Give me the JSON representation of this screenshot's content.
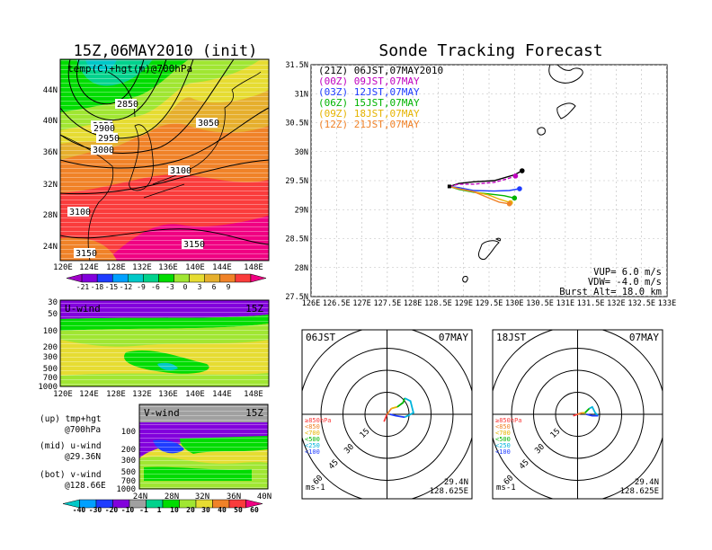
{
  "colors": {
    "temp_scale": [
      "#a000c8",
      "#8200dc",
      "#1e3cff",
      "#00a0ff",
      "#00c8c8",
      "#00d28c",
      "#00dc00",
      "#a0e632",
      "#e6dc32",
      "#e6af2d",
      "#f08228",
      "#fa3c3c",
      "#f00082"
    ],
    "wind_scale": [
      "#00c8c8",
      "#00a0ff",
      "#1e3cff",
      "#8200dc",
      "#a0a0a0",
      "#00d28c",
      "#00dc00",
      "#a0e632",
      "#e6dc32",
      "#f08228",
      "#fa3c3c",
      "#f00082"
    ]
  },
  "left": {
    "main_title": "15Z,06MAY2010 (init)",
    "map_label": "temp(C)+hgt(m)@700hPa",
    "map_lat_ticks": [
      "44N",
      "40N",
      "36N",
      "32N",
      "28N",
      "24N"
    ],
    "map_lon_ticks": [
      "120E",
      "124E",
      "128E",
      "132E",
      "136E",
      "140E",
      "144E",
      "148E"
    ],
    "contours": [
      "2850",
      "2900",
      "2950",
      "3000",
      "3050",
      "3100",
      "3100",
      "3150",
      "3150"
    ],
    "temp_colorbar": [
      "-21",
      "-18",
      "-15",
      "-12",
      "-9",
      "-6",
      "-3",
      "0",
      "3",
      "6",
      "9"
    ],
    "u_title": "U-wind",
    "u_time": "15Z",
    "u_p_ticks": [
      "30",
      "50",
      "100",
      "200",
      "300",
      "500",
      "700",
      "1000"
    ],
    "u_lon_ticks": [
      "120E",
      "124E",
      "128E",
      "132E",
      "136E",
      "140E",
      "144E",
      "148E"
    ],
    "v_title": "V-wind",
    "v_time": "15Z",
    "v_p_ticks": [
      "100",
      "200",
      "300",
      "500",
      "700",
      "1000"
    ],
    "v_lat_ticks": [
      "24N",
      "28N",
      "32N",
      "36N",
      "40N"
    ],
    "wind_colorbar": [
      "-40",
      "-30",
      "-20",
      "-10",
      "-1",
      "1",
      "10",
      "20",
      "30",
      "40",
      "50",
      "60"
    ],
    "legend": [
      {
        "head": "(up) tmp+hgt",
        "sub": "@700hPa"
      },
      {
        "head": "(mid) u-wind",
        "sub": "@29.36N"
      },
      {
        "head": "(bot) v-wind",
        "sub": "@128.66E"
      }
    ]
  },
  "right": {
    "title": "Sonde Tracking Forecast",
    "forecasts": [
      {
        "label": "(21Z) 06JST,07MAY2010",
        "color": "#000000"
      },
      {
        "label": "(00Z) 09JST,07MAY",
        "color": "#c000c0"
      },
      {
        "label": "(03Z) 12JST,07MAY",
        "color": "#1e3cff"
      },
      {
        "label": "(06Z) 15JST,07MAY",
        "color": "#00b400"
      },
      {
        "label": "(09Z) 18JST,07MAY",
        "color": "#e6b400"
      },
      {
        "label": "(12Z) 21JST,07MAY",
        "color": "#f08228"
      }
    ],
    "track_lat_ticks": [
      "31.5N",
      "31N",
      "30.5N",
      "30N",
      "29.5N",
      "29N",
      "28.5N",
      "28N",
      "27.5N"
    ],
    "track_lon_ticks": [
      "126E",
      "126.5E",
      "127E",
      "127.5E",
      "128E",
      "128.5E",
      "129E",
      "129.5E",
      "130E",
      "130.5E",
      "131E",
      "131.5E",
      "132E",
      "132.5E",
      "133E"
    ],
    "vup": "VUP=  6.0  m/s",
    "vdw": "VDW= -4.0  m/s",
    "burst": "Burst Alt=  18.0  km",
    "polars": [
      {
        "time": "06JST",
        "date": "07MAY",
        "lat": "29.4N",
        "lon": "128.625E",
        "unit": "ms-1",
        "rings": [
          "15",
          "30",
          "45",
          "60"
        ]
      },
      {
        "time": "18JST",
        "date": "07MAY",
        "lat": "29.4N",
        "lon": "128.625E",
        "unit": "ms-1",
        "rings": [
          "15",
          "30",
          "45",
          "60"
        ]
      }
    ],
    "pressure_levels": [
      {
        "label": "≥850hPa",
        "color": "#fa3c3c"
      },
      {
        "label": "<850",
        "color": "#f08228"
      },
      {
        "label": "<700",
        "color": "#e6b400"
      },
      {
        "label": "<500",
        "color": "#00b400"
      },
      {
        "label": "<250",
        "color": "#00b4dc"
      },
      {
        "label": "<100",
        "color": "#1e3cff"
      }
    ]
  },
  "chart_data": [
    {
      "type": "heatmap",
      "title": "15Z,06MAY2010 (init)",
      "label": "temp(C)+hgt(m)@700hPa",
      "xlim": [
        120,
        150
      ],
      "ylim": [
        22,
        47
      ],
      "colorbar_levels": [
        -21,
        -18,
        -15,
        -12,
        -9,
        -6,
        -3,
        0,
        3,
        6,
        9
      ],
      "contour_values": [
        2850,
        2900,
        2950,
        3000,
        3050,
        3100,
        3150
      ]
    },
    {
      "type": "heatmap",
      "title": "U-wind",
      "label": "15Z",
      "x_ticks": [
        "120E",
        "124E",
        "128E",
        "132E",
        "136E",
        "140E",
        "144E",
        "148E"
      ],
      "y_ticks_hPa": [
        30,
        50,
        100,
        200,
        300,
        500,
        700,
        1000
      ],
      "colorbar_levels": [
        -40,
        -30,
        -20,
        -10,
        -1,
        1,
        10,
        20,
        30,
        40,
        50,
        60
      ]
    },
    {
      "type": "heatmap",
      "title": "V-wind",
      "label": "15Z",
      "x_ticks": [
        "24N",
        "28N",
        "32N",
        "36N",
        "40N"
      ],
      "y_ticks_hPa": [
        100,
        200,
        300,
        500,
        700,
        1000
      ]
    },
    {
      "type": "line",
      "title": "Sonde Tracking Forecast",
      "xlim": [
        126,
        133
      ],
      "ylim": [
        27.5,
        31.5
      ],
      "series": [
        {
          "name": "(21Z) 06JST,07MAY2010",
          "x": [
            128.72,
            128.9,
            129.2,
            129.6,
            130.0,
            130.15
          ],
          "y": [
            29.4,
            29.45,
            29.48,
            29.5,
            29.6,
            29.67
          ]
        },
        {
          "name": "(00Z) 09JST,07MAY",
          "x": [
            128.72,
            128.9,
            129.2,
            129.6,
            129.85,
            130.02
          ],
          "y": [
            29.4,
            29.44,
            29.44,
            29.47,
            29.53,
            29.58
          ]
        },
        {
          "name": "(03Z) 12JST,07MAY",
          "x": [
            128.72,
            128.9,
            129.2,
            129.6,
            129.9,
            130.1
          ],
          "y": [
            29.4,
            29.38,
            29.33,
            29.32,
            29.33,
            29.36
          ]
        },
        {
          "name": "(06Z) 15JST,07MAY",
          "x": [
            128.72,
            128.9,
            129.2,
            129.5,
            129.8,
            130.0
          ],
          "y": [
            29.4,
            29.35,
            29.3,
            29.27,
            29.24,
            29.2
          ]
        },
        {
          "name": "(09Z) 18JST,07MAY",
          "x": [
            128.72,
            128.9,
            129.2,
            129.5,
            129.7,
            129.92
          ],
          "y": [
            29.4,
            29.36,
            29.31,
            29.25,
            29.18,
            29.12
          ]
        },
        {
          "name": "(12Z) 21JST,07MAY",
          "x": [
            128.72,
            128.9,
            129.2,
            129.5,
            129.7,
            129.9
          ],
          "y": [
            29.4,
            29.36,
            29.31,
            29.2,
            29.13,
            29.1
          ]
        }
      ]
    },
    {
      "type": "line",
      "title": "06JST 07MAY",
      "subtitle": "29.4N 128.625E",
      "rings_ms": [
        15,
        30,
        45,
        60
      ],
      "hodograph": [
        {
          "level": "≥850hPa",
          "u": [
            -2,
            0
          ],
          "v": [
            -5,
            0
          ]
        },
        {
          "level": "<850",
          "u": [
            0,
            3
          ],
          "v": [
            0,
            4
          ]
        },
        {
          "level": "<700",
          "u": [
            3,
            7
          ],
          "v": [
            4,
            5
          ]
        },
        {
          "level": "<500",
          "u": [
            7,
            11,
            12
          ],
          "v": [
            5,
            8,
            11
          ]
        },
        {
          "level": "<250",
          "u": [
            12,
            16,
            18,
            12
          ],
          "v": [
            11,
            9,
            1,
            -2
          ]
        },
        {
          "level": "<100",
          "u": [
            12,
            6,
            2
          ],
          "v": [
            -2,
            -1,
            0
          ]
        }
      ]
    },
    {
      "type": "line",
      "title": "18JST 07MAY",
      "subtitle": "29.4N 128.625E",
      "rings_ms": [
        15,
        30,
        45,
        60
      ],
      "hodograph": [
        {
          "level": "≥850hPa",
          "u": [
            -3,
            0
          ],
          "v": [
            -1,
            0
          ]
        },
        {
          "level": "<850",
          "u": [
            0,
            3
          ],
          "v": [
            0,
            1
          ]
        },
        {
          "level": "<700",
          "u": [
            3,
            5
          ],
          "v": [
            1,
            1
          ]
        },
        {
          "level": "<500",
          "u": [
            5,
            7,
            8
          ],
          "v": [
            1,
            3,
            4
          ]
        },
        {
          "level": "<250",
          "u": [
            8,
            10,
            12,
            14
          ],
          "v": [
            4,
            5,
            1,
            -1
          ]
        },
        {
          "level": "<100",
          "u": [
            14,
            10,
            6
          ],
          "v": [
            -1,
            -1,
            0
          ]
        }
      ]
    }
  ]
}
